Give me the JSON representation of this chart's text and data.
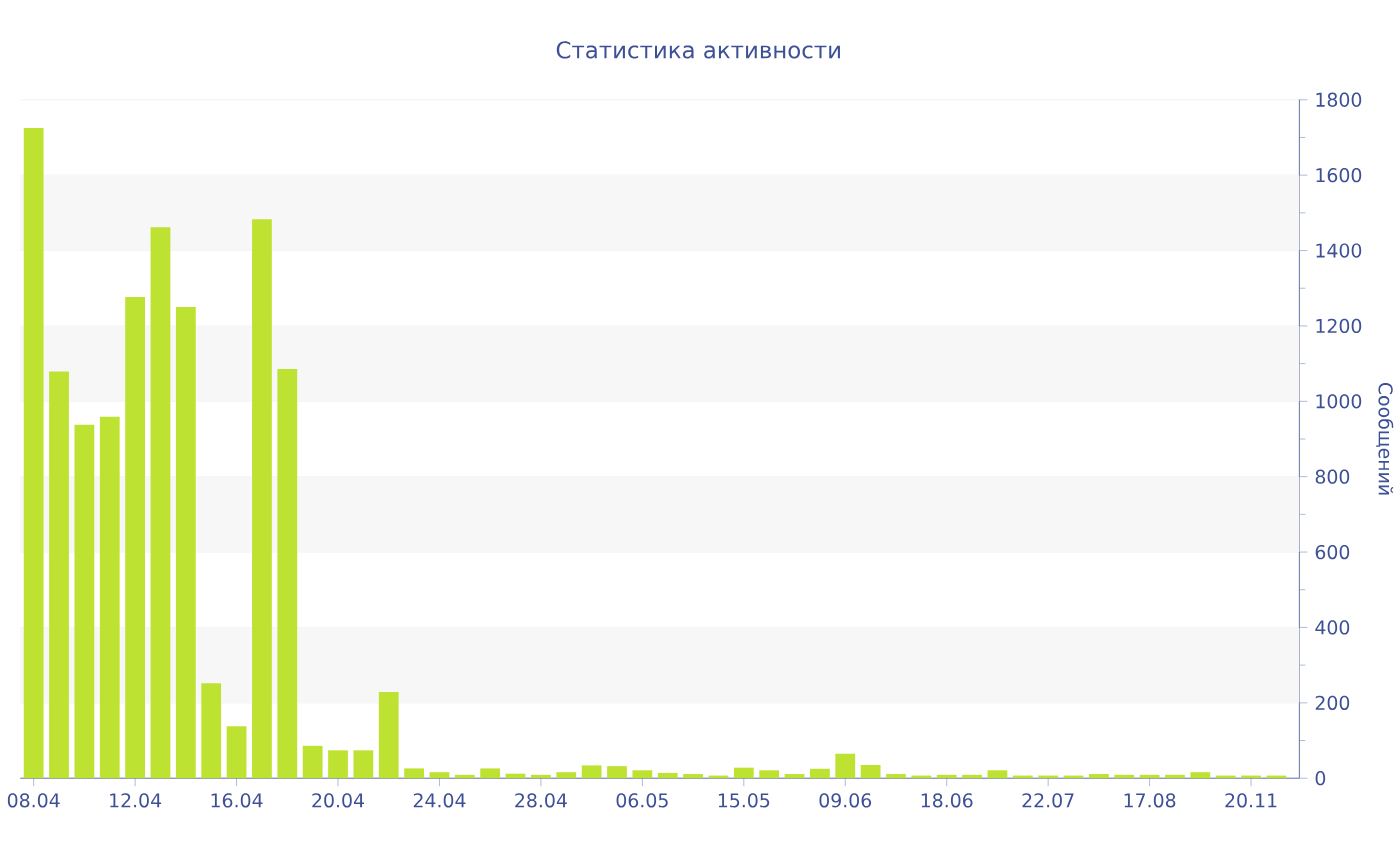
{
  "chart_data": {
    "type": "bar",
    "title": "Статистика активности",
    "ylabel": "Сообщений",
    "categories": [
      "08.04",
      null,
      null,
      null,
      "12.04",
      null,
      null,
      null,
      "16.04",
      null,
      null,
      null,
      "20.04",
      null,
      null,
      null,
      "24.04",
      null,
      null,
      null,
      "28.04",
      null,
      null,
      null,
      "06.05",
      null,
      null,
      null,
      "15.05",
      null,
      null,
      null,
      "09.06",
      null,
      null,
      null,
      "18.06",
      null,
      null,
      null,
      "22.07",
      null,
      null,
      null,
      "17.08",
      null,
      null,
      null,
      "20.11",
      null
    ],
    "values": [
      1725,
      1079,
      938,
      959,
      1277,
      1462,
      1250,
      252,
      138,
      1483,
      1086,
      86,
      74,
      74,
      229,
      26,
      16,
      9,
      26,
      12,
      9,
      16,
      34,
      32,
      21,
      14,
      11,
      7,
      28,
      21,
      11,
      25,
      65,
      35,
      11,
      7,
      9,
      9,
      21,
      7,
      7,
      7,
      11,
      9,
      9,
      9,
      16,
      7,
      7,
      7
    ],
    "color": "#bde232",
    "ylim": [
      0,
      1800
    ],
    "yticks": [
      0,
      200,
      400,
      600,
      800,
      1000,
      1200,
      1400,
      1600,
      1800
    ],
    "grid": "y"
  }
}
